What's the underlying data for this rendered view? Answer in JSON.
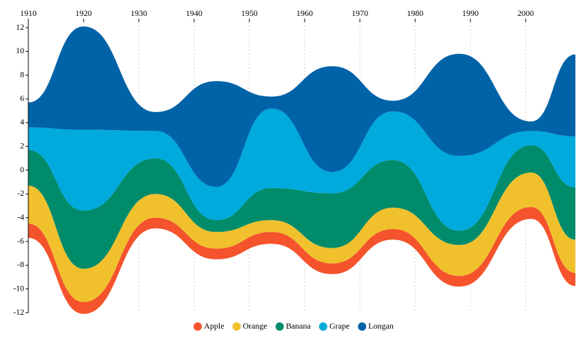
{
  "chart_data": {
    "type": "streamgraph",
    "x": [
      1910,
      1920,
      1933,
      1944,
      1954,
      1965,
      1976,
      1988,
      2001,
      2009
    ],
    "series": [
      {
        "name": "Apple",
        "color": "#f4532c",
        "values": [
          1.2,
          1.0,
          0.9,
          0.9,
          1.0,
          0.9,
          0.9,
          0.9,
          1.0,
          1.1
        ]
      },
      {
        "name": "Orange",
        "color": "#f0c12c",
        "values": [
          3.2,
          2.8,
          2.0,
          1.4,
          1.0,
          1.3,
          1.8,
          2.6,
          2.9,
          2.8
        ]
      },
      {
        "name": "Banana",
        "color": "#008b6b",
        "values": [
          3.0,
          4.9,
          3.0,
          1.0,
          2.7,
          4.6,
          4.0,
          1.2,
          2.3,
          4.4
        ]
      },
      {
        "name": "Grape",
        "color": "#00aadc",
        "values": [
          1.9,
          6.8,
          2.3,
          2.8,
          6.7,
          1.8,
          4.1,
          6.3,
          1.2,
          4.3
        ]
      },
      {
        "name": "Longan",
        "color": "#0063a8",
        "values": [
          2.1,
          8.7,
          1.6,
          8.9,
          1.0,
          8.9,
          0.9,
          8.6,
          0.8,
          6.9
        ]
      }
    ],
    "xlim": [
      1910,
      2009
    ],
    "xticks": [
      1910,
      1920,
      1930,
      1940,
      1950,
      1960,
      1970,
      1980,
      1990,
      2000
    ],
    "ylim": [
      -12,
      12
    ],
    "yticks": [
      -12,
      -10,
      -8,
      -6,
      -4,
      -2,
      0,
      2,
      4,
      6,
      8,
      10,
      12
    ],
    "grid": true,
    "legend": "bottom"
  }
}
